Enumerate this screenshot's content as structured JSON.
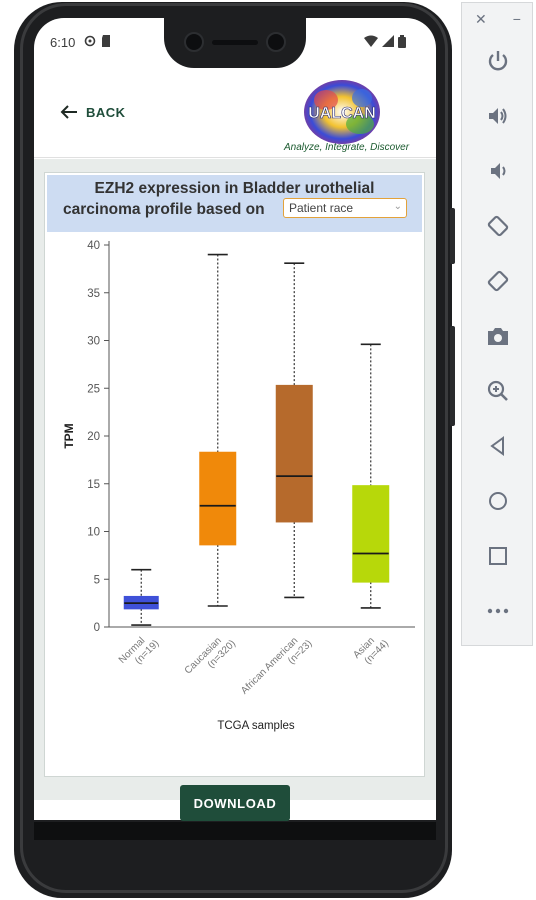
{
  "status_bar": {
    "time": "6:10",
    "left_icons": [
      "gear-status-icon",
      "shield-status-icon",
      "sd-card-icon"
    ],
    "right_icons": [
      "wifi-icon",
      "signal-icon",
      "battery-icon"
    ]
  },
  "app_bar": {
    "back_label": "BACK",
    "logo_text": "UALCAN",
    "tagline": "Analyze, Integrate, Discover"
  },
  "card": {
    "title_line1": "EZH2 expression in Bladder urothelial",
    "title_line2": "carcinoma profile based on",
    "dropdown_value": "Patient race"
  },
  "download_label": "DOWNLOAD",
  "colors": {
    "brand_green": "#1f4d3a",
    "header_blue": "#cddcf2",
    "dropdown_border": "#e3a23a"
  },
  "emulator_toolbar": {
    "top_controls": [
      "close-icon",
      "minimize-icon"
    ],
    "buttons": [
      "power-icon",
      "volume-up-icon",
      "volume-down-icon",
      "rotate-left-icon",
      "rotate-right-icon",
      "camera-icon",
      "zoom-icon",
      "back-icon",
      "home-icon",
      "overview-icon",
      "more-icon"
    ]
  },
  "chart_data": {
    "type": "boxplot",
    "xlabel": "TCGA samples",
    "ylabel": "TPM",
    "ylim": [
      0,
      40
    ],
    "yticks": [
      0,
      5,
      10,
      15,
      20,
      25,
      30,
      35,
      40
    ],
    "grid": false,
    "categories": [
      {
        "name": "Normal",
        "n": "(n=19)",
        "min": 0.2,
        "q1": 1.9,
        "median": 2.5,
        "q3": 3.2,
        "max": 6.0,
        "color": "#3f51d8"
      },
      {
        "name": "Caucasian",
        "n": "(n=320)",
        "min": 2.2,
        "q1": 8.6,
        "median": 12.7,
        "q3": 18.3,
        "max": 39.0,
        "color": "#f0890a"
      },
      {
        "name": "African American",
        "n": "(n=23)",
        "min": 3.1,
        "q1": 11.0,
        "median": 15.8,
        "q3": 25.3,
        "max": 38.1,
        "color": "#b66a2c"
      },
      {
        "name": "Asian",
        "n": "(n=44)",
        "min": 2.0,
        "q1": 4.7,
        "median": 7.7,
        "q3": 14.8,
        "max": 29.6,
        "color": "#b7d80a"
      }
    ]
  }
}
